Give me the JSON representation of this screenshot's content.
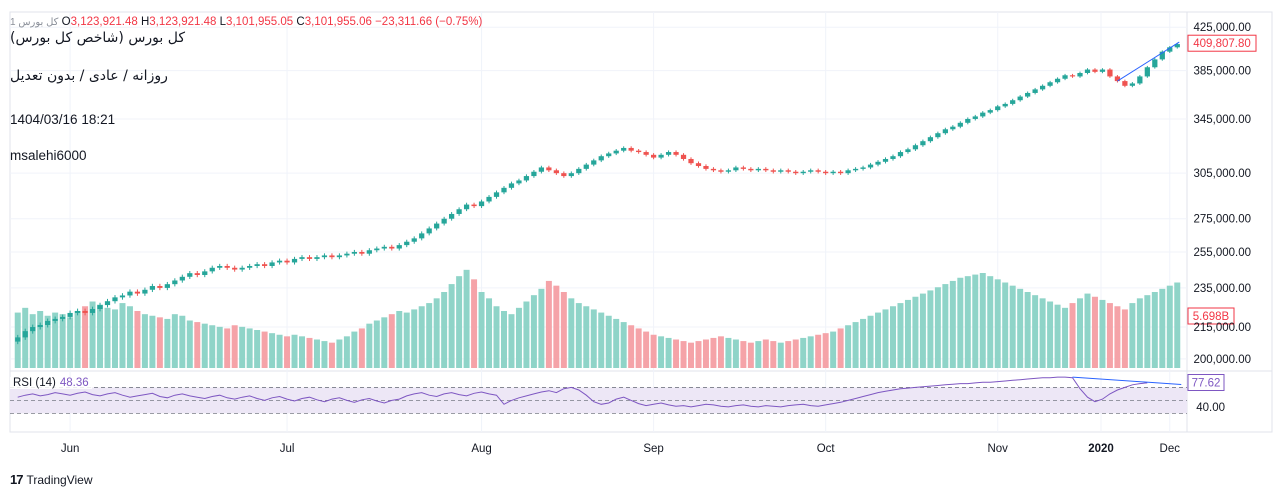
{
  "header": {
    "symbol_hint": "1 کل بورس",
    "ohlc": [
      {
        "key": "O",
        "value": "3,123,921.48"
      },
      {
        "key": "H",
        "value": "3,123,921.48"
      },
      {
        "key": "L",
        "value": "3,101,955.05"
      },
      {
        "key": "C",
        "value": "3,101,955.06"
      }
    ],
    "change": "−23,311.66 (−0.75%)"
  },
  "title": {
    "name": "کل بورس (شاخص کل بورس)",
    "interval": "روزانه / عادی / بدون تعدیل",
    "datetime": "1404/03/16 18:21",
    "author": "msalehi6000"
  },
  "rsi": {
    "label": "RSI (14)",
    "value": "48.36",
    "last_badge": "77.62",
    "level_label": "40.00"
  },
  "footer": {
    "brand": "TradingView"
  },
  "colors": {
    "up": "#26a69a",
    "down": "#ef5350",
    "volume_up": "#8fd4c8",
    "volume_down": "#f5a3a8",
    "rsi_line": "#7e57c2",
    "rsi_band": "#ede7f6",
    "trendline": "#2962ff",
    "badge": "#f23645"
  },
  "chart_data": {
    "type": "candlestick",
    "price_axis_ticks": [
      "425,000.00",
      "385,000.00",
      "345,000.00",
      "305,000.00",
      "275,000.00",
      "255,000.00",
      "235,000.00",
      "215,000.00",
      "200,000.00"
    ],
    "price_badge": "409,807.80",
    "volume_badge": "5.698B",
    "x_tick_labels": [
      "Jun",
      "Jul",
      "Aug",
      "Sep",
      "Oct",
      "Nov",
      "Dec",
      "2020"
    ],
    "close_series": [
      210,
      213,
      215,
      216,
      218,
      219,
      220,
      222,
      223,
      222,
      224,
      226,
      228,
      230,
      231,
      233,
      232,
      234,
      236,
      235,
      237,
      239,
      241,
      243,
      242,
      244,
      246,
      247,
      246,
      245,
      246,
      247,
      248,
      247,
      249,
      250,
      249,
      251,
      252,
      251,
      252,
      253,
      252,
      253,
      254,
      255,
      254,
      256,
      257,
      258,
      257,
      259,
      261,
      263,
      266,
      269,
      272,
      275,
      278,
      281,
      284,
      283,
      286,
      289,
      292,
      295,
      298,
      300,
      303,
      306,
      309,
      307,
      305,
      303,
      305,
      308,
      311,
      314,
      317,
      319,
      321,
      323,
      321,
      320,
      318,
      316,
      318,
      320,
      318,
      315,
      312,
      310,
      308,
      307,
      306,
      307,
      309,
      308,
      307,
      308,
      307,
      306,
      307,
      306,
      305,
      306,
      307,
      306,
      305,
      306,
      305,
      307,
      308,
      309,
      311,
      313,
      315,
      317,
      320,
      322,
      325,
      328,
      331,
      334,
      337,
      339,
      342,
      345,
      347,
      350,
      352,
      355,
      357,
      360,
      363,
      366,
      369,
      372,
      375,
      378,
      381,
      380,
      383,
      386,
      384,
      386,
      380,
      376,
      372,
      374,
      380,
      388,
      395,
      402,
      406,
      409
    ],
    "volume_series": [
      215,
      218,
      214,
      216,
      213,
      215,
      214,
      212,
      216,
      219,
      222,
      220,
      218,
      217,
      221,
      219,
      216,
      214,
      213,
      212,
      211,
      214,
      213,
      210,
      209,
      208,
      207,
      206,
      205,
      207,
      206,
      205,
      204,
      203,
      202,
      201,
      200,
      201,
      200,
      199,
      198,
      197,
      196,
      198,
      200,
      203,
      205,
      208,
      210,
      212,
      214,
      216,
      215,
      217,
      219,
      221,
      224,
      228,
      233,
      238,
      242,
      236,
      228,
      224,
      219,
      216,
      214,
      218,
      222,
      226,
      230,
      235,
      232,
      228,
      224,
      221,
      219,
      217,
      215,
      213,
      211,
      209,
      207,
      205,
      203,
      201,
      200,
      199,
      198,
      197,
      196,
      197,
      198,
      199,
      200,
      199,
      198,
      197,
      196,
      197,
      198,
      197,
      196,
      197,
      198,
      199,
      200,
      201,
      202,
      203,
      205,
      207,
      209,
      211,
      213,
      215,
      217,
      219,
      221,
      223,
      225,
      227,
      229,
      231,
      233,
      235,
      237,
      238,
      239,
      240,
      238,
      236,
      234,
      232,
      230,
      228,
      226,
      224,
      222,
      220,
      218,
      221,
      224,
      227,
      225,
      223,
      221,
      219,
      217,
      221,
      224,
      226,
      228,
      230,
      232,
      234
    ],
    "rsi_series": [
      55,
      58,
      60,
      57,
      59,
      62,
      60,
      58,
      61,
      63,
      59,
      57,
      60,
      62,
      58,
      55,
      57,
      59,
      61,
      56,
      54,
      58,
      60,
      57,
      55,
      53,
      56,
      58,
      54,
      52,
      55,
      57,
      53,
      50,
      54,
      56,
      52,
      49,
      53,
      55,
      51,
      48,
      52,
      54,
      50,
      47,
      51,
      53,
      49,
      46,
      50,
      52,
      57,
      60,
      62,
      58,
      56,
      60,
      62,
      59,
      57,
      61,
      63,
      60,
      58,
      44,
      50,
      54,
      57,
      60,
      63,
      65,
      62,
      68,
      70,
      66,
      58,
      48,
      44,
      46,
      52,
      55,
      50,
      45,
      42,
      44,
      46,
      43,
      41,
      42,
      40,
      42,
      44,
      43,
      41,
      40,
      42,
      43,
      41,
      40,
      42,
      41,
      40,
      42,
      43,
      44,
      42,
      41,
      43,
      45,
      47,
      50,
      53,
      56,
      59,
      62,
      64,
      66,
      68,
      69,
      70,
      71,
      72,
      73,
      74,
      75,
      76,
      76,
      77,
      78,
      78,
      79,
      80,
      81,
      82,
      83,
      84,
      85,
      85,
      86,
      86,
      85,
      68,
      55,
      48,
      52,
      60,
      66,
      70,
      74,
      76,
      77
    ],
    "rsi_levels": [
      70,
      50,
      30
    ]
  }
}
